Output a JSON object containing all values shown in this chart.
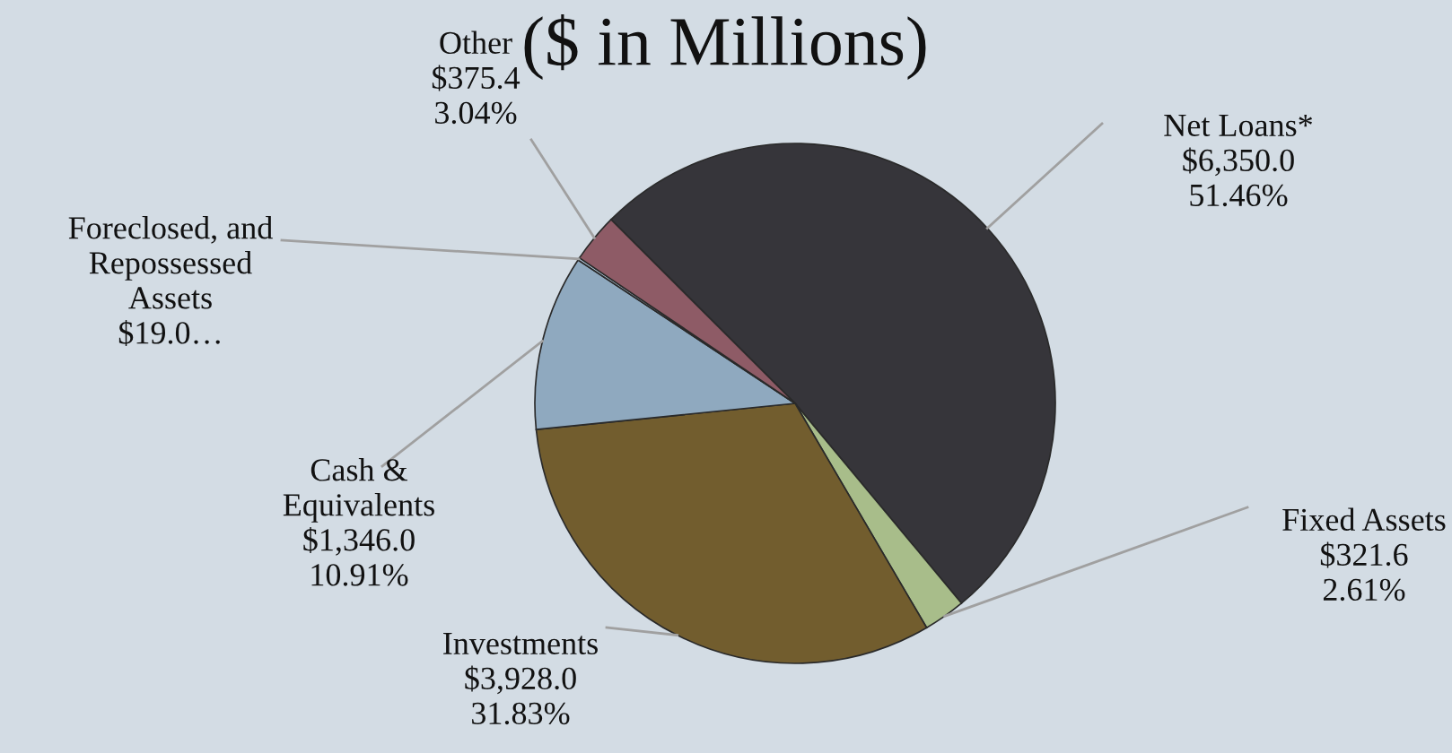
{
  "chart_data": {
    "type": "pie",
    "title": "($ in Millions)",
    "categories": [
      "Net Loans*",
      "Fixed Assets",
      "Investments",
      "Cash & Equivalents",
      "Foreclosed, and Repossessed Assets",
      "Other"
    ],
    "values": [
      6350.0,
      321.6,
      3928.0,
      1346.0,
      19.0,
      375.4
    ],
    "value_labels": [
      "$6,350.0\n51.46%",
      "$321.6\n2.61%",
      "$3,928.0\n31.83%",
      "$1,346.0\n10.91%",
      "$19.0…",
      "$375.4\n3.04%"
    ],
    "colors": [
      "#36353a",
      "#a8bd8a",
      "#725d2e",
      "#8fa9bf",
      "#b9d0e2",
      "#8e5b66"
    ],
    "legend": false
  }
}
